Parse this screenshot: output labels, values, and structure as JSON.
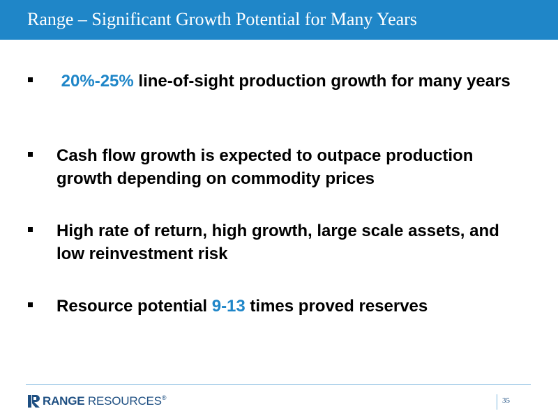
{
  "slide": {
    "title": "Range – Significant Growth Potential for Many Years",
    "bullets": [
      {
        "highlight": "20%-25%",
        "text_after": " line-of-sight production growth for many years"
      },
      {
        "text": "Cash flow growth is expected to outpace production growth depending on commodity prices"
      },
      {
        "text": "High rate of return, high growth, large scale assets, and low reinvestment risk"
      },
      {
        "text_before": "Resource potential ",
        "highlight": "9-13",
        "text_after": " times proved reserves"
      }
    ]
  },
  "footer": {
    "logo_icon": "range-resources-r-logo",
    "logo_range": "RANGE",
    "logo_resources": " RESOURCES",
    "logo_trademark": "®",
    "page_number": "35"
  },
  "colors": {
    "accent": "#1f86c8",
    "logo": "#1e4f82",
    "text": "#000000",
    "background": "#ffffff"
  }
}
